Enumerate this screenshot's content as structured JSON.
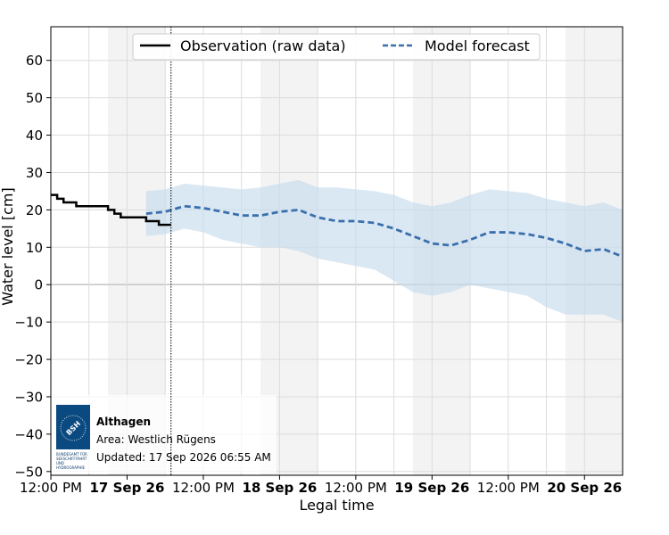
{
  "chart_data": {
    "type": "line",
    "title": "",
    "xlabel": "Legal time",
    "ylabel": "Water level [cm]",
    "ylim": [
      -51,
      69
    ],
    "yticks": [
      -50,
      -40,
      -30,
      -20,
      -10,
      0,
      10,
      20,
      30,
      40,
      50,
      60
    ],
    "xlim": [
      "2026-09-16 12:00",
      "2026-09-20 06:00"
    ],
    "xticks": [
      {
        "t": "2026-09-16 12:00",
        "label": "12:00 PM",
        "bold": false
      },
      {
        "t": "2026-09-17 00:00",
        "label": "17 Sep 26",
        "bold": true
      },
      {
        "t": "2026-09-17 12:00",
        "label": "12:00 PM",
        "bold": false
      },
      {
        "t": "2026-09-18 00:00",
        "label": "18 Sep 26",
        "bold": true
      },
      {
        "t": "2026-09-18 12:00",
        "label": "12:00 PM",
        "bold": false
      },
      {
        "t": "2026-09-19 00:00",
        "label": "19 Sep 26",
        "bold": true
      },
      {
        "t": "2026-09-19 12:00",
        "label": "12:00 PM",
        "bold": false
      },
      {
        "t": "2026-09-20 00:00",
        "label": "20 Sep 26",
        "bold": true
      }
    ],
    "night_shading": [
      [
        "2026-09-16 21:00",
        "2026-09-17 06:00"
      ],
      [
        "2026-09-17 21:00",
        "2026-09-18 06:00"
      ],
      [
        "2026-09-18 21:00",
        "2026-09-19 06:00"
      ],
      [
        "2026-09-19 21:00",
        "2026-09-20 06:00"
      ]
    ],
    "now_marker": "2026-09-17 06:55",
    "grid": true,
    "legend": "top-center",
    "legend_entries": [
      "Observation (raw data)",
      "Model forecast"
    ],
    "colors": {
      "observation": "#000000",
      "forecast": "#3a6fad",
      "band": "#c6dbee",
      "night": "#ebebeb",
      "zero_line": "#c8c8c8",
      "grid": "#dcdcdc"
    },
    "series": [
      {
        "name": "Observation (raw data)",
        "style": "step",
        "x": [
          "2026-09-16 12:00",
          "2026-09-16 13:00",
          "2026-09-16 14:00",
          "2026-09-16 15:00",
          "2026-09-16 16:00",
          "2026-09-16 17:00",
          "2026-09-16 18:00",
          "2026-09-16 19:00",
          "2026-09-16 20:00",
          "2026-09-16 21:00",
          "2026-09-16 22:00",
          "2026-09-16 23:00",
          "2026-09-17 00:00",
          "2026-09-17 01:00",
          "2026-09-17 02:00",
          "2026-09-17 03:00",
          "2026-09-17 04:00",
          "2026-09-17 05:00",
          "2026-09-17 06:00",
          "2026-09-17 06:55"
        ],
        "y": [
          24,
          23,
          22,
          22,
          21,
          21,
          21,
          21,
          21,
          20,
          19,
          18,
          18,
          18,
          18,
          17,
          17,
          16,
          16,
          16
        ]
      },
      {
        "name": "Model forecast",
        "style": "dashed",
        "x": [
          "2026-09-17 03:00",
          "2026-09-17 06:00",
          "2026-09-17 09:00",
          "2026-09-17 12:00",
          "2026-09-17 15:00",
          "2026-09-17 18:00",
          "2026-09-17 21:00",
          "2026-09-18 00:00",
          "2026-09-18 03:00",
          "2026-09-18 06:00",
          "2026-09-18 09:00",
          "2026-09-18 12:00",
          "2026-09-18 15:00",
          "2026-09-18 18:00",
          "2026-09-18 21:00",
          "2026-09-19 00:00",
          "2026-09-19 03:00",
          "2026-09-19 06:00",
          "2026-09-19 09:00",
          "2026-09-19 12:00",
          "2026-09-19 15:00",
          "2026-09-19 18:00",
          "2026-09-19 21:00",
          "2026-09-20 00:00",
          "2026-09-20 03:00",
          "2026-09-20 06:00"
        ],
        "y": [
          19,
          19.5,
          21,
          20.5,
          19.5,
          18.5,
          18.5,
          19.5,
          20,
          18,
          17,
          17,
          16.5,
          15,
          13,
          11,
          10.5,
          12,
          14,
          14,
          13.5,
          12.5,
          11,
          9,
          9.5,
          7.5
        ],
        "band_lower": [
          13,
          13.5,
          15,
          14,
          12,
          11,
          10,
          10,
          9,
          7,
          6,
          5,
          4,
          1,
          -2,
          -3,
          -2,
          0,
          -1,
          -2,
          -3,
          -6,
          -8,
          -8,
          -8,
          -10
        ],
        "band_upper": [
          25,
          25.5,
          27,
          26.5,
          26,
          25.5,
          26,
          27,
          28,
          26,
          26,
          25.5,
          25,
          24,
          22,
          21,
          22,
          24,
          25.5,
          25,
          24.5,
          23,
          22,
          21,
          22,
          20
        ]
      }
    ]
  },
  "info_box": {
    "logo_name": "bsh-logo",
    "logo_mark": "BSH",
    "logo_caption": [
      "BUNDESAMT FÜR",
      "SEESCHIFFFAHRT",
      "UND",
      "HYDROGRAPHIE"
    ],
    "station": "Althagen",
    "area": "Area: Westlich Rügens",
    "updated": "Updated: 17 Sep 2026 06:55 AM"
  }
}
